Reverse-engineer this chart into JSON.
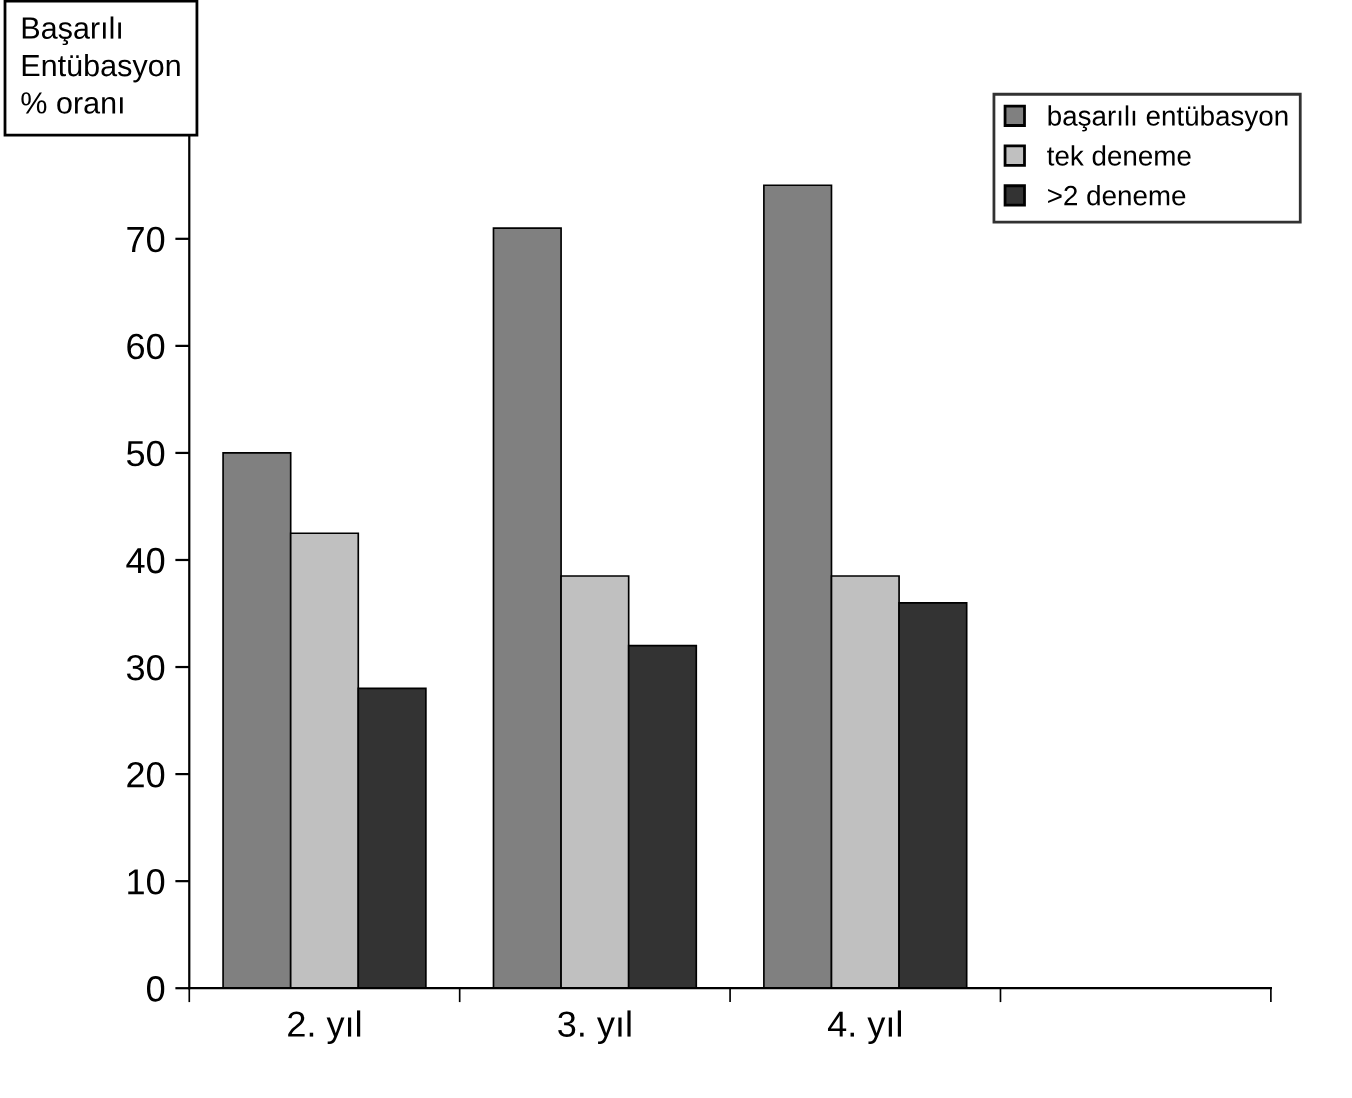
{
  "chart_data": {
    "type": "bar",
    "ylabel": "Başarılı\nEntübasyon\n% oranı",
    "categories": [
      "2. yıl",
      "3. yıl",
      "4. yıl",
      null
    ],
    "series": [
      {
        "name": "başarılı entübasyon",
        "color": "#808080",
        "values": [
          50,
          71,
          75,
          null
        ]
      },
      {
        "name": "tek deneme",
        "color": "#c0c0c0",
        "values": [
          42.5,
          38.5,
          38.5,
          null
        ]
      },
      {
        "name": ">2 deneme",
        "color": "#333333",
        "values": [
          28,
          32,
          36,
          null
        ]
      }
    ],
    "ylim": [
      0,
      80
    ],
    "yticks": [
      0,
      10,
      20,
      30,
      40,
      50,
      60,
      70
    ],
    "grid": false,
    "legend": "top right"
  }
}
